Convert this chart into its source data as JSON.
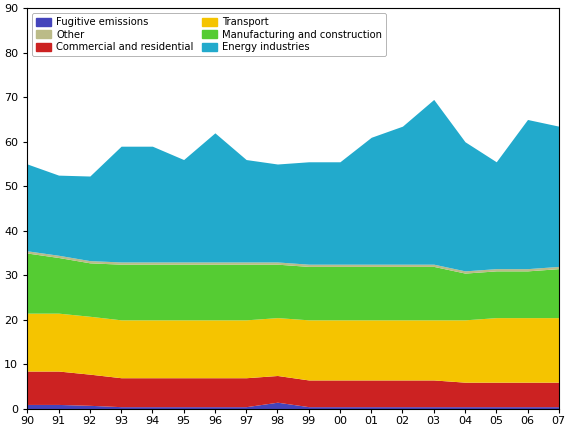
{
  "year_labels": [
    "90",
    "91",
    "92",
    "93",
    "94",
    "95",
    "96",
    "97",
    "98",
    "99",
    "00",
    "01",
    "02",
    "03",
    "04",
    "05",
    "06",
    "07"
  ],
  "fugitive_emissions": [
    1.0,
    1.0,
    0.8,
    0.5,
    0.5,
    0.5,
    0.5,
    0.5,
    1.5,
    0.5,
    0.5,
    0.5,
    0.5,
    0.5,
    0.5,
    0.5,
    0.5,
    0.5
  ],
  "commercial_residential": [
    7.5,
    7.5,
    7.0,
    6.5,
    6.5,
    6.5,
    6.5,
    6.5,
    6.0,
    6.0,
    6.0,
    6.0,
    6.0,
    6.0,
    5.5,
    5.5,
    5.5,
    5.5
  ],
  "transport": [
    13.0,
    13.0,
    13.0,
    13.0,
    13.0,
    13.0,
    13.0,
    13.0,
    13.0,
    13.5,
    13.5,
    13.5,
    13.5,
    13.5,
    14.0,
    14.5,
    14.5,
    14.5
  ],
  "manufacturing_construction": [
    13.5,
    12.5,
    12.0,
    12.5,
    12.5,
    12.5,
    12.5,
    12.5,
    12.0,
    12.0,
    12.0,
    12.0,
    12.0,
    12.0,
    10.5,
    10.5,
    10.5,
    11.0
  ],
  "other": [
    0.5,
    0.5,
    0.5,
    0.5,
    0.5,
    0.5,
    0.5,
    0.5,
    0.5,
    0.5,
    0.5,
    0.5,
    0.5,
    0.5,
    0.5,
    0.5,
    0.5,
    0.5
  ],
  "energy_industries": [
    19.5,
    18.0,
    19.0,
    26.0,
    26.0,
    23.0,
    29.0,
    23.0,
    22.0,
    23.0,
    23.0,
    28.5,
    31.0,
    37.0,
    29.0,
    24.0,
    33.5,
    31.5
  ],
  "colors": {
    "fugitive_emissions": "#4444bb",
    "commercial_residential": "#cc2222",
    "transport": "#f5c400",
    "manufacturing_construction": "#55cc33",
    "other": "#bbbb88",
    "energy_industries": "#22aacc"
  },
  "ylim": [
    0,
    90
  ],
  "yticks": [
    0,
    10,
    20,
    30,
    40,
    50,
    60,
    70,
    80,
    90
  ],
  "background_color": "#ffffff"
}
